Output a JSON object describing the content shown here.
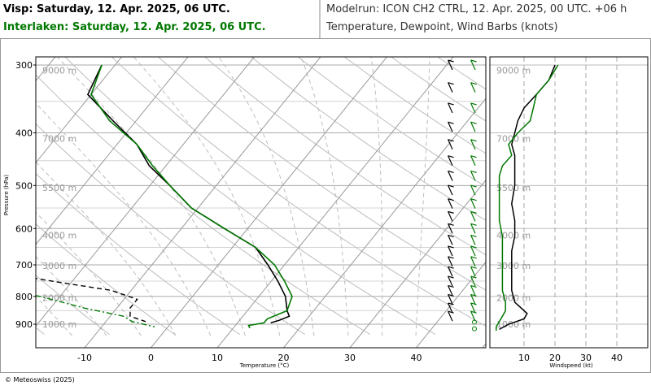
{
  "header": {
    "line1": "Visp: Saturday, 12. Apr. 2025, 06 UTC.",
    "line2": "Interlaken: Saturday, 12. Apr. 2025, 06 UTC.",
    "model_run": "Modelrun: ICON CH2 CTRL, 12. Apr. 2025, 00 UTC. +06 h",
    "variables": "Temperature, Dewpoint, Wind Barbs (knots)"
  },
  "footer": {
    "copyright": "© Meteoswiss (2025)"
  },
  "colors": {
    "visp": "#000000",
    "interlaken": "#007800",
    "grid": "#bbbbbb"
  },
  "chart_data": [
    {
      "type": "line",
      "title": "",
      "xlabel": "Temperature (°C)",
      "ylabel": "Pressure (hPa)",
      "x_ticks": [
        -10,
        0,
        10,
        20,
        30,
        40
      ],
      "y_ticks": [
        300,
        400,
        500,
        600,
        700,
        800,
        900
      ],
      "y_tick_labels": [
        "300",
        "400",
        "500",
        "600",
        "700",
        "800",
        "900"
      ],
      "height_labels": [
        "9000 m",
        "7000 m",
        "5500 m",
        "4000 m",
        "3000 m",
        "2000 m",
        "1000 m"
      ],
      "height_label_pressures": [
        307,
        410,
        505,
        617,
        702,
        805,
        900
      ],
      "xlim": [
        -20,
        47
      ],
      "ylim": [
        940,
        290
      ],
      "y_scale": "log",
      "skew": "skew-T log-P",
      "series": [
        {
          "name": "Visp",
          "variable": "temperature",
          "style": "solid",
          "pressure": [
            300,
            340,
            380,
            420,
            460,
            500,
            550,
            600,
            650,
            700,
            750,
            800,
            850,
            870,
            885,
            895
          ],
          "temp": [
            -42,
            -40.5,
            -33.5,
            -27,
            -22.5,
            -17,
            -11,
            -3.5,
            3.5,
            7.5,
            11,
            14,
            16,
            17,
            16,
            15
          ]
        },
        {
          "name": "Interlaken",
          "variable": "temperature",
          "style": "solid",
          "pressure": [
            300,
            340,
            380,
            420,
            460,
            500,
            550,
            600,
            650,
            700,
            750,
            800,
            850,
            880,
            895,
            905,
            915
          ],
          "temp": [
            -42,
            -40,
            -34,
            -27,
            -22,
            -17,
            -11,
            -3.5,
            3.5,
            8.5,
            12,
            15,
            16,
            14,
            14,
            12,
            12.5
          ]
        },
        {
          "name": "Visp",
          "variable": "dewpoint",
          "style": "dashed",
          "pressure": [
            300,
            340,
            380,
            420,
            460,
            500,
            550,
            580,
            600,
            640,
            660,
            680,
            700,
            720,
            750,
            780,
            810,
            840,
            870,
            890
          ],
          "temp": [
            -54,
            -59,
            -59,
            -63,
            -68,
            -71,
            -71,
            -59,
            -57,
            -61,
            -56,
            -49,
            -42,
            -33,
            -23,
            -13,
            -8,
            -8,
            -7,
            -4
          ]
        },
        {
          "name": "Interlaken",
          "variable": "dewpoint",
          "style": "dashdot",
          "pressure": [
            300,
            340,
            380,
            420,
            460,
            500,
            550,
            600,
            640,
            680,
            700,
            720,
            760,
            800,
            840,
            870,
            890,
            910
          ],
          "temp": [
            -52,
            -54,
            -59,
            -66,
            -72,
            -72,
            -66,
            -59,
            -58,
            -56,
            -49,
            -45,
            -34,
            -23,
            -15,
            -8,
            -6,
            -2
          ]
        }
      ]
    },
    {
      "type": "line",
      "title": "",
      "xlabel": "Windspeed (kt)",
      "x_ticks": [
        10,
        20,
        30,
        40
      ],
      "xlim": [
        0,
        50
      ],
      "height_labels": [
        "9000 m",
        "7000 m",
        "5500 m",
        "4000 m",
        "3000 m",
        "2000 m",
        "1000 m"
      ],
      "series": [
        {
          "name": "Visp",
          "pressure": [
            300,
            320,
            340,
            360,
            380,
            400,
            420,
            440,
            460,
            480,
            500,
            540,
            580,
            620,
            660,
            700,
            740,
            780,
            820,
            860,
            880,
            900,
            920
          ],
          "speed": [
            20,
            18,
            14,
            10,
            8,
            7,
            6,
            7,
            7,
            7,
            7,
            6,
            7,
            7,
            6,
            6,
            6,
            6,
            7,
            11,
            10,
            5,
            2
          ]
        },
        {
          "name": "Interlaken",
          "pressure": [
            300,
            320,
            340,
            360,
            380,
            400,
            420,
            440,
            460,
            480,
            500,
            540,
            580,
            620,
            660,
            700,
            740,
            780,
            820,
            850,
            870,
            890,
            910,
            925
          ],
          "speed": [
            21,
            18,
            14,
            13,
            12,
            8,
            5,
            6,
            3,
            2,
            2,
            2,
            2,
            3,
            3,
            3,
            3,
            3,
            4,
            4,
            3,
            2,
            1,
            1
          ]
        }
      ]
    }
  ]
}
